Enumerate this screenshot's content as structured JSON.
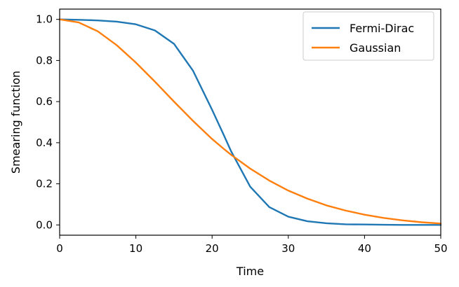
{
  "chart_data": {
    "type": "line",
    "title": "",
    "xlabel": "Time",
    "ylabel": "Smearing function",
    "xlim": [
      0,
      50
    ],
    "ylim": [
      -0.05,
      1.05
    ],
    "xticks": [
      0,
      10,
      20,
      30,
      40,
      50
    ],
    "xtick_labels": [
      "0",
      "10",
      "20",
      "30",
      "40",
      "50"
    ],
    "yticks": [
      0.0,
      0.2,
      0.4,
      0.6,
      0.8,
      1.0
    ],
    "ytick_labels": [
      "0.0",
      "0.2",
      "0.4",
      "0.6",
      "0.8",
      "1.0"
    ],
    "grid": false,
    "legend_position": "top-right",
    "x": [
      0,
      2.5,
      5,
      7.5,
      10,
      12.5,
      15,
      17.5,
      20,
      21.5,
      22.5,
      25,
      27.5,
      30,
      32.5,
      35,
      37.5,
      40,
      42.5,
      45,
      47.5,
      50
    ],
    "series": [
      {
        "name": "Fermi-Dirac",
        "color": "#1f77b4",
        "values": [
          1.0,
          0.998,
          0.995,
          0.989,
          0.976,
          0.946,
          0.881,
          0.75,
          0.56,
          0.44,
          0.358,
          0.186,
          0.087,
          0.04,
          0.018,
          0.008,
          0.003,
          0.002,
          0.001,
          0.0,
          0.0,
          0.0
        ]
      },
      {
        "name": "Gaussian",
        "color": "#ff7f0e",
        "values": [
          1.0,
          0.985,
          0.942,
          0.874,
          0.79,
          0.697,
          0.6,
          0.506,
          0.418,
          0.371,
          0.341,
          0.274,
          0.216,
          0.167,
          0.128,
          0.095,
          0.07,
          0.05,
          0.034,
          0.022,
          0.013,
          0.007
        ]
      }
    ]
  }
}
